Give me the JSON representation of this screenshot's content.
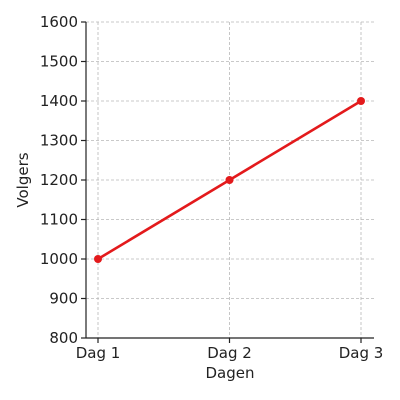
{
  "chart_data": {
    "type": "line",
    "title": "",
    "xlabel": "Dagen",
    "ylabel": "Volgers",
    "categories": [
      "Dag 1",
      "Dag 2",
      "Dag 3"
    ],
    "series": [
      {
        "values": [
          1000,
          1200,
          1400
        ],
        "color": "#e31a1c",
        "marker": "circle"
      }
    ],
    "ylim": [
      800,
      1600
    ],
    "yticks": [
      800,
      900,
      1000,
      1100,
      1200,
      1300,
      1400,
      1500,
      1600
    ],
    "grid": true,
    "legend": "none"
  }
}
